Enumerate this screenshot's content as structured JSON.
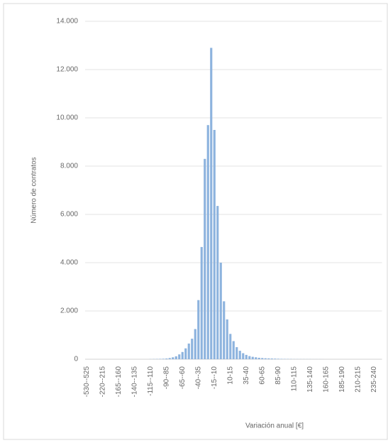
{
  "chart_data": {
    "type": "bar",
    "ylabel": "Número de contratos",
    "xlabel": "Variación anual [€]",
    "color": "#8db3de",
    "grid": true,
    "ylim": [
      0,
      14000
    ],
    "yticks": [
      {
        "value": 0,
        "label": "0"
      },
      {
        "value": 2000,
        "label": "2.000"
      },
      {
        "value": 4000,
        "label": "4.000"
      },
      {
        "value": 6000,
        "label": "6.000"
      },
      {
        "value": 8000,
        "label": "8.000"
      },
      {
        "value": 10000,
        "label": "10.000"
      },
      {
        "value": 12000,
        "label": "12.000"
      },
      {
        "value": 14000,
        "label": "14.000"
      }
    ],
    "categories": [
      "-530--525",
      null,
      null,
      null,
      null,
      "-220--215",
      null,
      null,
      null,
      null,
      "-165--160",
      null,
      null,
      null,
      null,
      "-140--135",
      null,
      null,
      null,
      null,
      "-115--110",
      null,
      null,
      null,
      null,
      "-90--85",
      null,
      null,
      null,
      null,
      "-65--60",
      null,
      null,
      null,
      null,
      "-40--35",
      null,
      null,
      null,
      null,
      "-15--10",
      null,
      null,
      null,
      null,
      "10-15",
      null,
      null,
      null,
      null,
      "35-40",
      null,
      null,
      null,
      null,
      "60-65",
      null,
      null,
      null,
      null,
      "85-90",
      null,
      null,
      null,
      null,
      "110-115",
      null,
      null,
      null,
      null,
      "135-140",
      null,
      null,
      null,
      null,
      "160-165",
      null,
      null,
      null,
      null,
      "185-190",
      null,
      null,
      null,
      null,
      "210-215",
      null,
      null,
      null,
      null,
      "235-240",
      null,
      null
    ],
    "values": [
      0,
      0,
      0,
      0,
      0,
      0,
      0,
      0,
      0,
      0,
      0,
      0,
      0,
      0,
      0,
      0,
      0,
      0,
      0,
      0,
      5,
      8,
      10,
      15,
      20,
      30,
      50,
      80,
      120,
      200,
      300,
      450,
      650,
      850,
      1250,
      2450,
      4650,
      8300,
      9700,
      12900,
      9500,
      6350,
      4000,
      2400,
      1650,
      1050,
      750,
      500,
      350,
      250,
      180,
      130,
      100,
      80,
      60,
      50,
      40,
      35,
      30,
      25,
      20,
      15,
      12,
      10,
      8,
      5,
      5,
      4,
      4,
      3,
      3,
      2,
      2,
      2,
      1,
      0,
      0,
      0,
      0,
      0,
      0,
      0,
      0,
      0,
      0,
      0,
      0,
      0,
      0,
      0,
      0,
      0,
      0
    ]
  }
}
